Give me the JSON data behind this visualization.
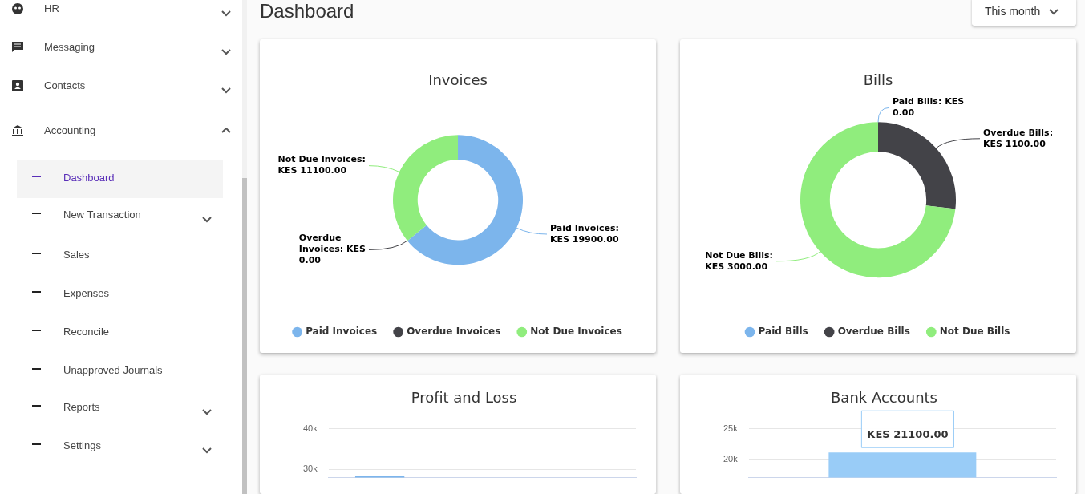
{
  "chart_data": [
    {
      "type": "other",
      "title": "Dashboard",
      "subtitle": "This month",
      "annotations": [
        "HR",
        "Messaging",
        "Contacts",
        "Accounting",
        "Dashboard",
        "New Transaction",
        "Sales",
        "Expenses",
        "Reconcile",
        "Unapproved Journals",
        "Reports",
        "Settings"
      ]
    },
    {
      "type": "donut",
      "title": "Invoices",
      "categories": [
        "Paid Invoices",
        "Overdue Invoices",
        "Not Due Invoices"
      ],
      "values": [
        19900,
        0,
        11100
      ],
      "colors": [
        "#7cb5ec",
        "#434348",
        "#90ed7d"
      ],
      "value_labels": [
        "Paid Invoices: KES 19900.00",
        "Overdue Invoices: KES 0.00",
        "Not Due Invoices: KES 11100.00"
      ],
      "legend": "bottom"
    },
    {
      "type": "donut",
      "title": "Bills",
      "categories": [
        "Paid Bills",
        "Overdue Bills",
        "Not Due Bills"
      ],
      "values": [
        0,
        1100,
        3000
      ],
      "colors": [
        "#7cb5ec",
        "#434348",
        "#90ed7d"
      ],
      "value_labels": [
        "Paid Bills: KES 0.00",
        "Overdue Bills: KES 1100.00",
        "Not Due Bills: KES 3000.00"
      ],
      "legend": "bottom"
    },
    {
      "type": "bar",
      "title": "Profit and Loss",
      "categories": [
        null,
        null,
        null
      ],
      "values": [
        28400,
        null,
        null
      ],
      "color": "#7cb5ec",
      "ylim": [
        28000,
        40000
      ],
      "yticks": [
        {
          "value": 30000,
          "label": "30k"
        },
        {
          "value": 40000,
          "label": "40k"
        }
      ],
      "grid": "y",
      "tick_labels": "y"
    },
    {
      "type": "bar",
      "title": "Bank Accounts",
      "categories": [
        null
      ],
      "values": [
        21100
      ],
      "color": "#99ccf7",
      "value_labels": [
        "KES 21100.00"
      ],
      "ylim": [
        17000,
        25000
      ],
      "yticks": [
        {
          "value": 20000,
          "label": "20k"
        },
        {
          "value": 25000,
          "label": "25k"
        }
      ],
      "grid": "y",
      "tick_labels": "y"
    }
  ]
}
